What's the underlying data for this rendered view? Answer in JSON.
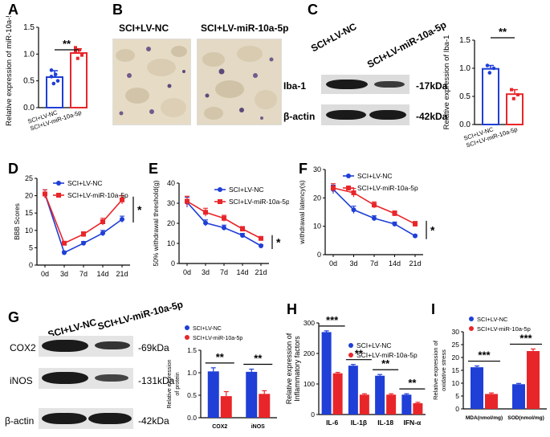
{
  "panels": {
    "A": {
      "label": "A",
      "ylabel": "Relative expression of miR-10a-5p",
      "sig": "**",
      "chart_data": {
        "type": "bar",
        "categories": [
          "SCI+LV-NC",
          "SCI+LV-miR-10a-5p"
        ],
        "values": [
          0.57,
          1.02
        ],
        "errors": [
          0.12,
          0.08
        ],
        "points": [
          [
            0.45,
            0.5,
            0.58,
            0.62,
            0.7
          ],
          [
            0.92,
            0.98,
            1.05,
            1.08,
            1.12
          ]
        ],
        "colors": [
          "#1f3fd6",
          "#e8262a"
        ],
        "ylim": [
          0,
          1.5
        ],
        "yticks": [
          "0.0",
          "0.5",
          "1.0",
          "1.5"
        ]
      }
    },
    "B": {
      "label": "B",
      "images": [
        "SCI+LV-NC",
        "SCI+LV-miR-10a-5p"
      ]
    },
    "C": {
      "label": "C",
      "blot_labels": [
        "SCI+LV-NC",
        "SCI+LV-miR-10a-5p"
      ],
      "rows": [
        {
          "protein": "Iba-1",
          "kda": "-17kDa"
        },
        {
          "protein": "β-actin",
          "kda": "-42kDa"
        }
      ],
      "ylabel": "Relative expression of Iba-1",
      "sig": "**",
      "chart_data": {
        "type": "bar",
        "categories": [
          "SCI+LV-NC",
          "SCI+LV-miR-10a-5p"
        ],
        "values": [
          0.99,
          0.54
        ],
        "errors": [
          0.06,
          0.08
        ],
        "points": [
          [
            0.92,
            1.0,
            1.05
          ],
          [
            0.46,
            0.53,
            0.62
          ]
        ],
        "colors": [
          "#1f3fd6",
          "#e8262a"
        ],
        "ylim": [
          0,
          1.5
        ],
        "yticks": [
          "0.0",
          "0.5",
          "1.0",
          "1.5"
        ]
      }
    },
    "D": {
      "label": "D",
      "sig": "*",
      "chart_data": {
        "type": "line",
        "ylabel": "BBB Scores",
        "x": [
          "0d",
          "3d",
          "7d",
          "14d",
          "21d"
        ],
        "ylim": [
          0,
          25
        ],
        "yticks": [
          "0",
          "5",
          "10",
          "15",
          "20",
          "25"
        ],
        "series": [
          {
            "name": "SCI+LV-NC",
            "values": [
              20.5,
              3.6,
              6.3,
              9.2,
              13.2
            ],
            "errors": [
              1.2,
              0.4,
              0.5,
              0.8,
              0.9
            ],
            "color": "#1f3fd6",
            "marker": "circle"
          },
          {
            "name": "SCI+LV-miR-10a-5p",
            "values": [
              20.5,
              6.3,
              8.9,
              12.5,
              18.8
            ],
            "errors": [
              1.2,
              0.5,
              0.7,
              1.0,
              1.2
            ],
            "color": "#e8262a",
            "marker": "square"
          }
        ]
      }
    },
    "E": {
      "label": "E",
      "sig": "*",
      "chart_data": {
        "type": "line",
        "ylabel": "50% withdrawal threshold(g)",
        "x": [
          "0d",
          "3d",
          "7d",
          "14d",
          "21d"
        ],
        "ylim": [
          0,
          40
        ],
        "yticks": [
          "0",
          "10",
          "20",
          "30",
          "40"
        ],
        "series": [
          {
            "name": "SCI+LV-NC",
            "values": [
              30.5,
              20.2,
              17.8,
              14.0,
              8.8
            ],
            "errors": [
              2.5,
              1.5,
              1.3,
              1.0,
              0.6
            ],
            "color": "#1f3fd6",
            "marker": "circle"
          },
          {
            "name": "SCI+LV-miR-10a-5p",
            "values": [
              31.0,
              25.5,
              22.5,
              17.2,
              12.5
            ],
            "errors": [
              2.5,
              2.0,
              1.5,
              1.2,
              0.8
            ],
            "color": "#e8262a",
            "marker": "square"
          }
        ]
      }
    },
    "F": {
      "label": "F",
      "sig": "*",
      "chart_data": {
        "type": "line",
        "ylabel": "withdrawal latency(s)",
        "x": [
          "0d",
          "3d",
          "7d",
          "14d",
          "21d"
        ],
        "ylim": [
          0,
          30
        ],
        "yticks": [
          "0",
          "10",
          "20",
          "30"
        ],
        "series": [
          {
            "name": "SCI+LV-NC",
            "values": [
              23.0,
              15.8,
              12.8,
              10.8,
              6.6
            ],
            "errors": [
              1.5,
              1.3,
              0.9,
              0.7,
              0.4
            ],
            "color": "#1f3fd6",
            "marker": "circle"
          },
          {
            "name": "SCI+LV-miR-10a-5p",
            "values": [
              23.5,
              21.8,
              17.5,
              14.5,
              10.8
            ],
            "errors": [
              1.5,
              1.5,
              1.1,
              0.9,
              0.9
            ],
            "color": "#e8262a",
            "marker": "square"
          }
        ]
      }
    },
    "G": {
      "label": "G",
      "blot_labels": [
        "SCI+LV-NC",
        "SCI+LV-miR-10a-5p"
      ],
      "rows": [
        {
          "protein": "COX2",
          "kda": "-69kDa"
        },
        {
          "protein": "iNOS",
          "kda": "-131kDa"
        },
        {
          "protein": "β-actin",
          "kda": "-42kDa"
        }
      ],
      "sigs": [
        "**",
        "**"
      ],
      "chart_data": {
        "type": "bar",
        "ylabel": "Relative expression of protein",
        "categories": [
          "COX2",
          "iNOS"
        ],
        "ylim": [
          0,
          1.5
        ],
        "yticks": [
          "0.0",
          "0.5",
          "1.0",
          "1.5"
        ],
        "legend": [
          "SCI+LV-NC",
          "SCI+LV-miR-10a-5p"
        ],
        "series": [
          {
            "name": "SCI+LV-NC",
            "values": [
              1.03,
              1.02
            ],
            "errors": [
              0.08,
              0.06
            ],
            "color": "#1f3fd6"
          },
          {
            "name": "SCI+LV-miR-10a-5p",
            "values": [
              0.48,
              0.53
            ],
            "errors": [
              0.1,
              0.07
            ],
            "color": "#e8262a"
          }
        ]
      }
    },
    "H": {
      "label": "H",
      "sigs": [
        "***",
        "**",
        "**",
        "**"
      ],
      "chart_data": {
        "type": "bar",
        "ylabel": "Relative expression of Inflammatory factors",
        "categories": [
          "IL-6",
          "IL-1β",
          "IL-18",
          "IFN-α"
        ],
        "ylim": [
          0,
          300
        ],
        "yticks": [
          "0",
          "100",
          "200",
          "300"
        ],
        "legend": [
          "SCI+LV-NC",
          "SCI+LV-miR-10a-5p"
        ],
        "series": [
          {
            "name": "SCI+LV-NC",
            "values": [
              270,
              160,
              127,
              65
            ],
            "errors": [
              4,
              4,
              4,
              3
            ],
            "color": "#1f3fd6"
          },
          {
            "name": "SCI+LV-miR-10a-5p",
            "values": [
              135,
              65,
              65,
              37
            ],
            "errors": [
              3,
              3,
              3,
              3
            ],
            "color": "#e8262a"
          }
        ]
      }
    },
    "I": {
      "label": "I",
      "sigs": [
        "***",
        "***"
      ],
      "chart_data": {
        "type": "bar",
        "ylabel": "Relative expression of oxidative stress",
        "categories": [
          "MDA(nmol/mg)",
          "SOD(nmol/mg)"
        ],
        "ylim": [
          0,
          30
        ],
        "yticks": [
          "0",
          "5",
          "10",
          "15",
          "20",
          "25",
          "30"
        ],
        "legend": [
          "SCI+LV-NC",
          "SCI+LV-miR-10a-5p"
        ],
        "series": [
          {
            "name": "SCI+LV-NC",
            "values": [
              16.2,
              9.6
            ],
            "errors": [
              0.5,
              0.3
            ],
            "color": "#1f3fd6"
          },
          {
            "name": "SCI+LV-miR-10a-5p",
            "values": [
              5.8,
              22.5
            ],
            "errors": [
              0.4,
              0.8
            ],
            "color": "#e8262a"
          }
        ]
      }
    }
  }
}
